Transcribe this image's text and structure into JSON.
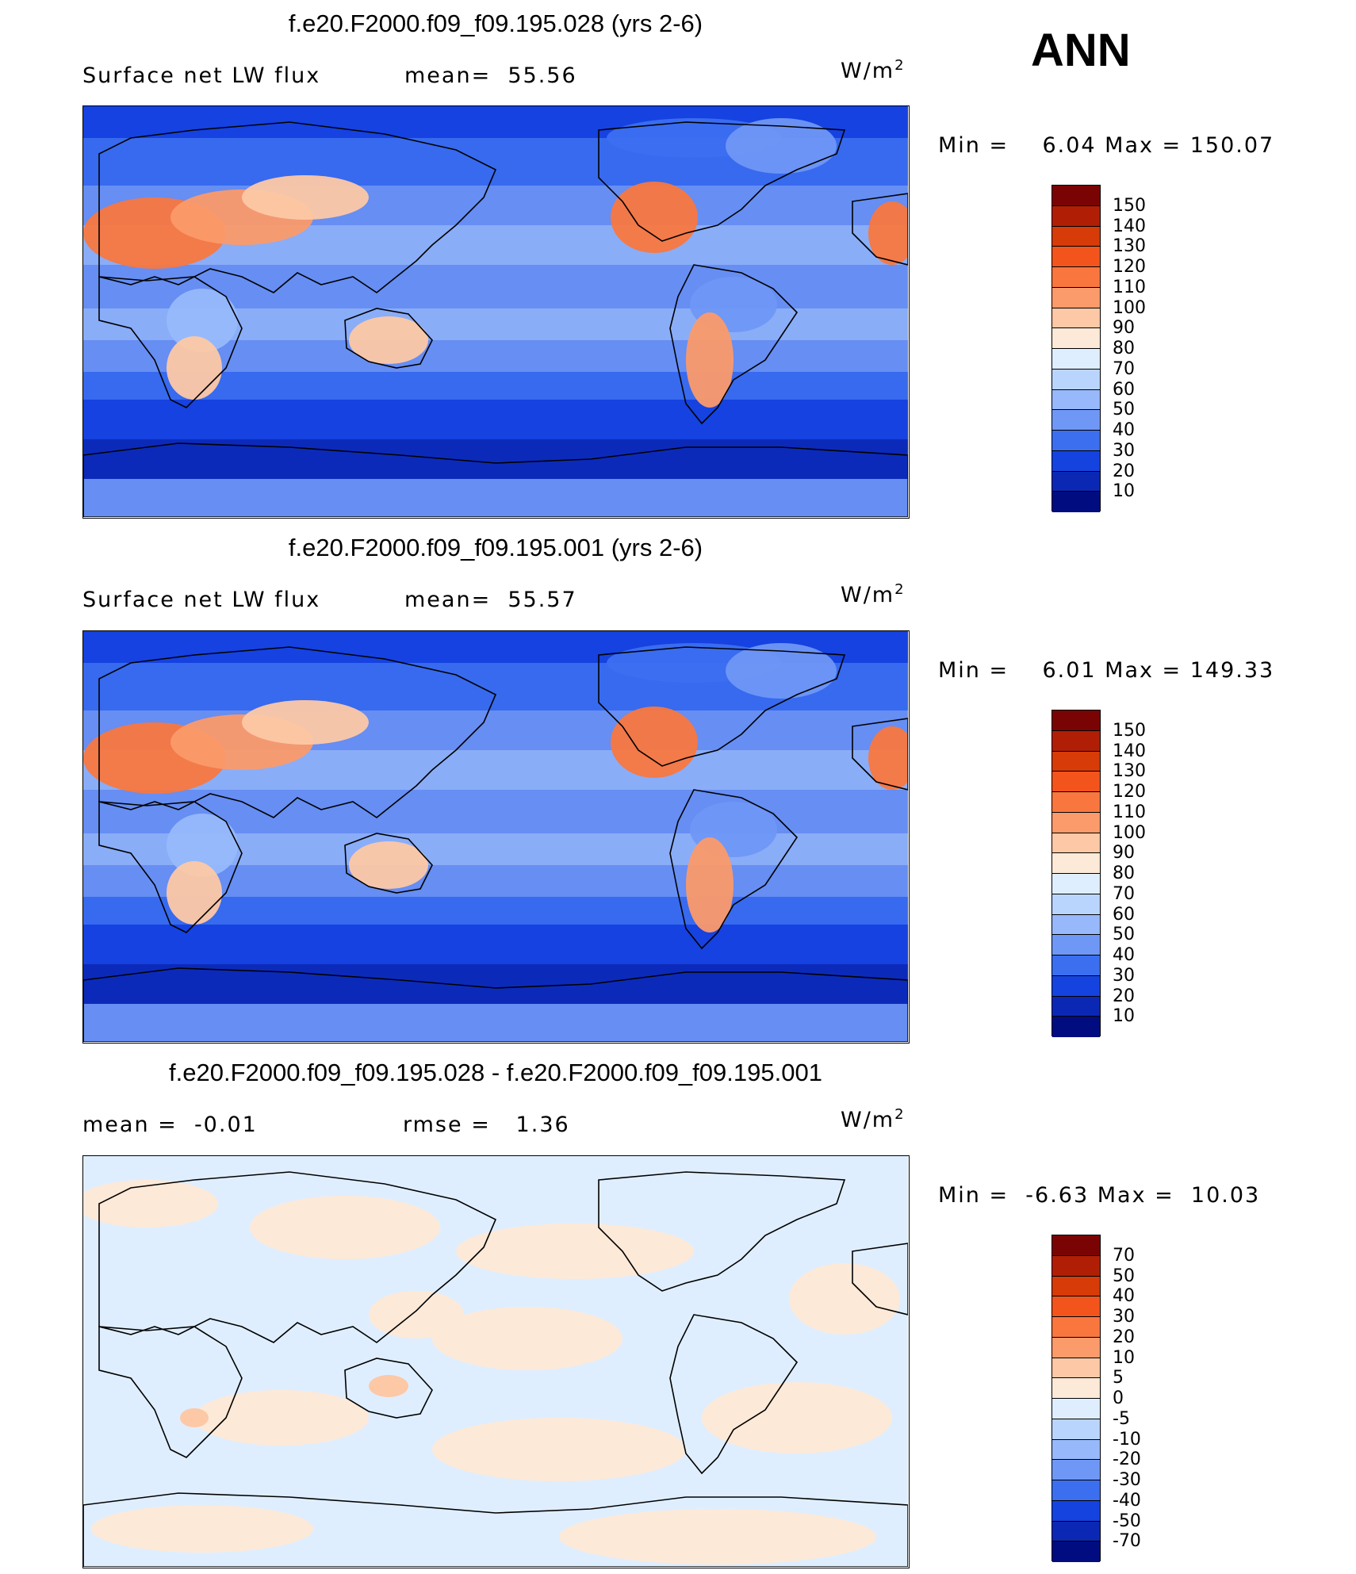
{
  "season": "ANN",
  "panels": [
    {
      "title": "f.e20.F2000.f09_f09.195.028 (yrs 2-6)",
      "left_text": "Surface net LW flux",
      "mid_text": "mean=  55.56",
      "unit_base": "W/m",
      "unit_exp": "2",
      "minmax": "Min =    6.04 Max = 150.07",
      "scheme": "abs"
    },
    {
      "title": "f.e20.F2000.f09_f09.195.001 (yrs 2-6)",
      "left_text": "Surface net LW flux",
      "mid_text": "mean=  55.57",
      "unit_base": "W/m",
      "unit_exp": "2",
      "minmax": "Min =    6.01 Max = 149.33",
      "scheme": "abs"
    },
    {
      "title": "f.e20.F2000.f09_f09.195.028 - f.e20.F2000.f09_f09.195.001",
      "left_text": "mean =  -0.01",
      "mid_text": "rmse =   1.36",
      "unit_base": "W/m",
      "unit_exp": "2",
      "minmax": "Min =  -6.63 Max =  10.03",
      "scheme": "diff"
    }
  ],
  "colorbars": {
    "abs": {
      "labels": [
        "150",
        "140",
        "130",
        "120",
        "110",
        "100",
        "90",
        "80",
        "70",
        "60",
        "50",
        "40",
        "30",
        "20",
        "10"
      ],
      "colors": [
        "#7a0403",
        "#b01f05",
        "#d63b08",
        "#f2541b",
        "#f9773f",
        "#fb9a6a",
        "#fdc8a5",
        "#fde9d8",
        "#dfeefe",
        "#bad5fd",
        "#97b9fb",
        "#6f97f5",
        "#3b6ff0",
        "#1543e0",
        "#0b28b5",
        "#000c80"
      ]
    },
    "diff": {
      "labels": [
        "70",
        "50",
        "40",
        "30",
        "20",
        "10",
        "5",
        "0",
        "-5",
        "-10",
        "-20",
        "-30",
        "-40",
        "-50",
        "-70"
      ],
      "colors": [
        "#7a0403",
        "#b01f05",
        "#d63b08",
        "#f2541b",
        "#f9773f",
        "#fb9a6a",
        "#fdc8a5",
        "#fde9d8",
        "#dfeefe",
        "#bad5fd",
        "#97b9fb",
        "#6f97f5",
        "#3b6ff0",
        "#1543e0",
        "#0b28b5",
        "#000c80"
      ]
    }
  }
}
